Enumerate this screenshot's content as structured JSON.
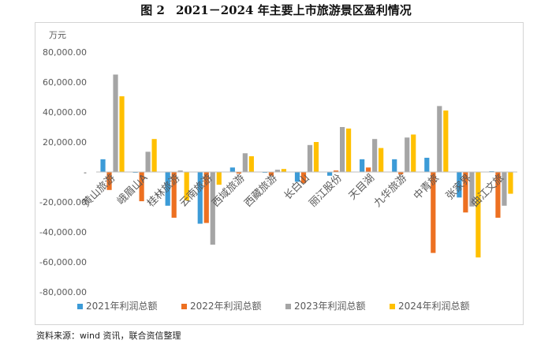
{
  "figure": {
    "number": "图 2",
    "title": "2021－2024 年主要上市旅游景区盈利情况"
  },
  "source": "资料来源：wind 资讯，联合资信整理",
  "colors": {
    "s2021": "#3C9BD7",
    "s2022": "#ED7021",
    "s2023": "#A5A5A5",
    "s2024": "#FFC000",
    "axis": "#bfbfbf",
    "text": "#595959"
  },
  "chart_data": {
    "type": "bar",
    "title": "2021－2024 年主要上市旅游景区盈利情况",
    "ylabel": "万元",
    "xlabel": "",
    "ylim": [
      -80000,
      80000
    ],
    "yticks": [
      80000,
      60000,
      40000,
      20000,
      0,
      -20000,
      -40000,
      -60000,
      -80000
    ],
    "ytick_labels": [
      "80,000.00",
      "60,000.00",
      "40,000.00",
      "20,000.00",
      "-",
      "-20,000.00",
      "-40,000.00",
      "-60,000.00",
      "-80,000.00"
    ],
    "grid": false,
    "legend_position": "bottom",
    "categories": [
      "黄山旅游",
      "峨眉山A",
      "桂林旅游",
      "云南旅游",
      "西域旅游",
      "西藏旅游",
      "长白山",
      "丽江股份",
      "天目湖",
      "九华旅游",
      "中青旅",
      "张家界",
      "曲江文旅"
    ],
    "series": [
      {
        "name": "2021年利润总额",
        "values": [
          8500,
          -500,
          -22500,
          -34500,
          3000,
          -500,
          -6500,
          -2500,
          8500,
          8500,
          9500,
          -17000,
          500
        ]
      },
      {
        "name": "2022年利润总额",
        "values": [
          -12000,
          -19500,
          -30500,
          -34000,
          -1000,
          -2500,
          -7500,
          1000,
          3000,
          -1500,
          -54000,
          -27000,
          -30500
        ]
      },
      {
        "name": "2023年利润总额",
        "values": [
          65000,
          13500,
          1000,
          -48500,
          12500,
          1500,
          18000,
          30000,
          22000,
          23000,
          44000,
          -23000,
          -22500
        ]
      },
      {
        "name": "2024年利润总额",
        "values": [
          50500,
          22000,
          -19000,
          -8500,
          10500,
          2000,
          20000,
          29000,
          16000,
          25000,
          41000,
          -57000,
          -14500
        ]
      }
    ]
  }
}
